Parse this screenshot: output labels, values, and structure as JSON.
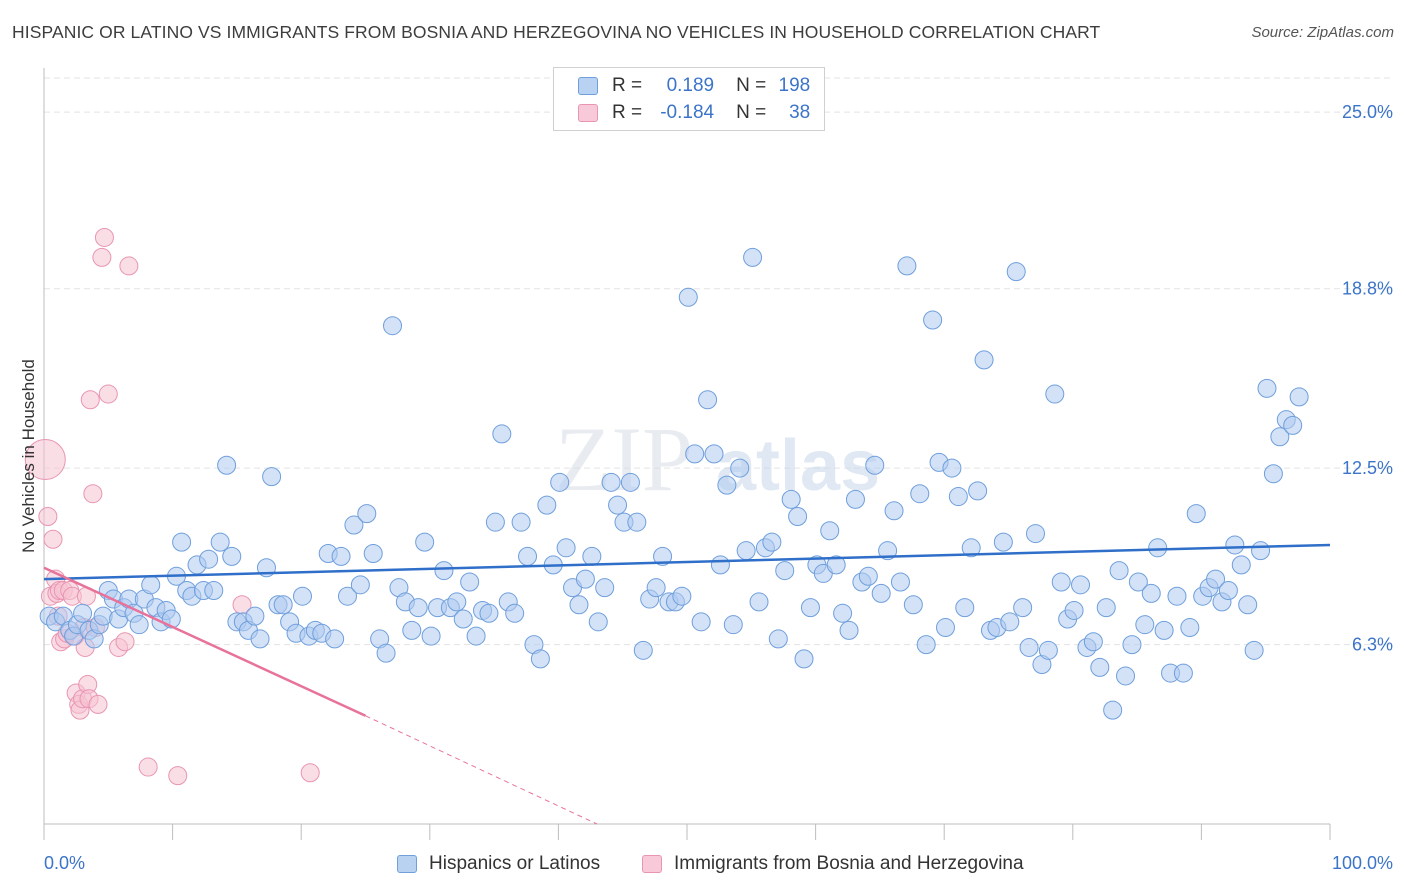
{
  "title": "HISPANIC OR LATINO VS IMMIGRANTS FROM BOSNIA AND HERZEGOVINA NO VEHICLES IN HOUSEHOLD CORRELATION CHART",
  "source": "Source: ZipAtlas.com",
  "watermark": {
    "part1": "ZIP",
    "part2": "atlas"
  },
  "legend": {
    "r_label": "R =",
    "n_label": "N =",
    "rows": [
      {
        "r": "0.189",
        "n": "198"
      },
      {
        "r": "-0.184",
        "n": "38"
      }
    ]
  },
  "colors": {
    "blue_fill": "#aecbf0",
    "blue_stroke": "#6f9fdc",
    "blue_line": "#2f6fc9",
    "pink_fill": "#f6c2d2",
    "pink_stroke": "#e995b2",
    "pink_line": "#e8729a",
    "axis_label": "#3b74c8",
    "grid": "#e3e3e3"
  },
  "chart_data": {
    "type": "scatter",
    "xlabel": "",
    "ylabel": "No Vehicles in Household",
    "xlim": [
      0,
      100
    ],
    "ylim": [
      0,
      26.2
    ],
    "x_tick_labels": [
      "0.0%",
      "100.0%"
    ],
    "y_ticks": [
      6.3,
      12.5,
      18.8,
      25.0
    ],
    "y_tick_labels": [
      "6.3%",
      "12.5%",
      "18.8%",
      "25.0%"
    ],
    "grid": "horizontal dashed",
    "series": [
      {
        "name": "Hispanics or Latinos",
        "trend": {
          "x": [
            0,
            100
          ],
          "y": [
            8.6,
            9.8
          ]
        },
        "points": [
          [
            0.4,
            7.3
          ],
          [
            0.9,
            7.1
          ],
          [
            1.5,
            7.3
          ],
          [
            2.0,
            6.8
          ],
          [
            2.3,
            6.6
          ],
          [
            2.6,
            7.0
          ],
          [
            3.0,
            7.4
          ],
          [
            3.5,
            6.8
          ],
          [
            3.9,
            6.5
          ],
          [
            4.3,
            7.0
          ],
          [
            4.6,
            7.3
          ],
          [
            5.0,
            8.2
          ],
          [
            5.4,
            7.9
          ],
          [
            5.8,
            7.2
          ],
          [
            6.2,
            7.6
          ],
          [
            6.6,
            7.9
          ],
          [
            7.0,
            7.4
          ],
          [
            7.4,
            7.0
          ],
          [
            7.8,
            7.9
          ],
          [
            8.3,
            8.4
          ],
          [
            8.7,
            7.6
          ],
          [
            9.1,
            7.1
          ],
          [
            9.5,
            7.5
          ],
          [
            9.9,
            7.2
          ],
          [
            10.3,
            8.7
          ],
          [
            10.7,
            9.9
          ],
          [
            11.1,
            8.2
          ],
          [
            11.5,
            8.0
          ],
          [
            11.9,
            9.1
          ],
          [
            12.4,
            8.2
          ],
          [
            12.8,
            9.3
          ],
          [
            13.2,
            8.2
          ],
          [
            13.7,
            9.9
          ],
          [
            14.2,
            12.6
          ],
          [
            14.6,
            9.4
          ],
          [
            15.0,
            7.1
          ],
          [
            15.5,
            7.1
          ],
          [
            15.9,
            6.8
          ],
          [
            16.4,
            7.3
          ],
          [
            16.8,
            6.5
          ],
          [
            17.3,
            9.0
          ],
          [
            17.7,
            12.2
          ],
          [
            18.2,
            7.7
          ],
          [
            18.6,
            7.7
          ],
          [
            19.1,
            7.1
          ],
          [
            19.6,
            6.7
          ],
          [
            20.1,
            8.0
          ],
          [
            20.6,
            6.6
          ],
          [
            21.1,
            6.8
          ],
          [
            21.6,
            6.7
          ],
          [
            22.1,
            9.5
          ],
          [
            22.6,
            6.5
          ],
          [
            23.1,
            9.4
          ],
          [
            23.6,
            8.0
          ],
          [
            24.1,
            10.5
          ],
          [
            24.6,
            8.4
          ],
          [
            25.1,
            10.9
          ],
          [
            25.6,
            9.5
          ],
          [
            26.1,
            6.5
          ],
          [
            26.6,
            6.0
          ],
          [
            27.1,
            17.5
          ],
          [
            27.6,
            8.3
          ],
          [
            28.1,
            7.8
          ],
          [
            28.6,
            6.8
          ],
          [
            29.1,
            7.6
          ],
          [
            29.6,
            9.9
          ],
          [
            30.1,
            6.6
          ],
          [
            30.6,
            7.6
          ],
          [
            31.1,
            8.9
          ],
          [
            31.6,
            7.6
          ],
          [
            32.1,
            7.8
          ],
          [
            32.6,
            7.2
          ],
          [
            33.1,
            8.5
          ],
          [
            33.6,
            6.6
          ],
          [
            34.1,
            7.5
          ],
          [
            34.6,
            7.4
          ],
          [
            35.1,
            10.6
          ],
          [
            35.6,
            13.7
          ],
          [
            36.1,
            7.8
          ],
          [
            36.6,
            7.4
          ],
          [
            37.1,
            10.6
          ],
          [
            37.6,
            9.4
          ],
          [
            38.1,
            6.3
          ],
          [
            38.6,
            5.8
          ],
          [
            39.1,
            11.2
          ],
          [
            39.6,
            9.1
          ],
          [
            40.1,
            12.0
          ],
          [
            40.6,
            9.7
          ],
          [
            41.1,
            8.3
          ],
          [
            41.6,
            7.7
          ],
          [
            42.1,
            8.6
          ],
          [
            42.6,
            9.4
          ],
          [
            43.1,
            7.1
          ],
          [
            43.6,
            8.3
          ],
          [
            44.1,
            12.0
          ],
          [
            44.6,
            11.2
          ],
          [
            45.1,
            10.6
          ],
          [
            45.6,
            12.0
          ],
          [
            46.1,
            10.6
          ],
          [
            46.6,
            6.1
          ],
          [
            47.1,
            7.9
          ],
          [
            47.6,
            8.3
          ],
          [
            48.1,
            9.4
          ],
          [
            48.6,
            7.8
          ],
          [
            49.1,
            7.8
          ],
          [
            49.6,
            8.0
          ],
          [
            50.1,
            18.5
          ],
          [
            50.6,
            13.0
          ],
          [
            51.1,
            7.1
          ],
          [
            51.6,
            14.9
          ],
          [
            52.1,
            13.0
          ],
          [
            52.6,
            9.1
          ],
          [
            53.1,
            11.9
          ],
          [
            53.6,
            7.0
          ],
          [
            54.1,
            12.5
          ],
          [
            54.6,
            9.6
          ],
          [
            55.1,
            19.9
          ],
          [
            55.6,
            7.8
          ],
          [
            56.1,
            9.7
          ],
          [
            56.6,
            9.9
          ],
          [
            57.1,
            6.5
          ],
          [
            57.6,
            8.9
          ],
          [
            58.1,
            11.4
          ],
          [
            58.6,
            10.8
          ],
          [
            59.1,
            5.8
          ],
          [
            59.6,
            7.6
          ],
          [
            60.1,
            9.1
          ],
          [
            60.6,
            8.8
          ],
          [
            61.1,
            10.3
          ],
          [
            61.6,
            9.1
          ],
          [
            62.1,
            7.4
          ],
          [
            62.6,
            6.8
          ],
          [
            63.1,
            11.4
          ],
          [
            63.6,
            8.5
          ],
          [
            64.1,
            8.7
          ],
          [
            64.6,
            12.6
          ],
          [
            65.1,
            8.1
          ],
          [
            65.6,
            9.6
          ],
          [
            66.1,
            11.0
          ],
          [
            66.6,
            8.5
          ],
          [
            67.1,
            19.6
          ],
          [
            67.6,
            7.7
          ],
          [
            68.1,
            11.6
          ],
          [
            68.6,
            6.3
          ],
          [
            69.1,
            17.7
          ],
          [
            69.6,
            12.7
          ],
          [
            70.1,
            6.9
          ],
          [
            70.6,
            12.5
          ],
          [
            71.1,
            11.5
          ],
          [
            71.6,
            7.6
          ],
          [
            72.1,
            9.7
          ],
          [
            72.6,
            11.7
          ],
          [
            73.1,
            16.3
          ],
          [
            73.6,
            6.8
          ],
          [
            74.1,
            6.9
          ],
          [
            74.6,
            9.9
          ],
          [
            75.1,
            7.1
          ],
          [
            75.6,
            19.4
          ],
          [
            76.1,
            7.6
          ],
          [
            76.6,
            6.2
          ],
          [
            77.1,
            10.2
          ],
          [
            77.6,
            5.6
          ],
          [
            78.1,
            6.1
          ],
          [
            78.6,
            15.1
          ],
          [
            79.1,
            8.5
          ],
          [
            79.6,
            7.2
          ],
          [
            80.1,
            7.5
          ],
          [
            80.6,
            8.4
          ],
          [
            81.1,
            6.2
          ],
          [
            81.6,
            6.4
          ],
          [
            82.1,
            5.5
          ],
          [
            82.6,
            7.6
          ],
          [
            83.1,
            4.0
          ],
          [
            83.6,
            8.9
          ],
          [
            84.1,
            5.2
          ],
          [
            84.6,
            6.3
          ],
          [
            85.1,
            8.5
          ],
          [
            85.6,
            7.0
          ],
          [
            86.1,
            8.1
          ],
          [
            86.6,
            9.7
          ],
          [
            87.1,
            6.8
          ],
          [
            87.6,
            5.3
          ],
          [
            88.1,
            8.0
          ],
          [
            88.6,
            5.3
          ],
          [
            89.1,
            6.9
          ],
          [
            89.6,
            10.9
          ],
          [
            90.1,
            8.0
          ],
          [
            90.6,
            8.3
          ],
          [
            91.1,
            8.6
          ],
          [
            91.6,
            7.8
          ],
          [
            92.1,
            8.2
          ],
          [
            92.6,
            9.8
          ],
          [
            93.1,
            9.1
          ],
          [
            93.6,
            7.7
          ],
          [
            94.1,
            6.1
          ],
          [
            94.6,
            9.6
          ],
          [
            95.1,
            15.3
          ],
          [
            95.6,
            12.3
          ],
          [
            96.1,
            13.6
          ],
          [
            96.6,
            14.2
          ],
          [
            97.1,
            14.0
          ],
          [
            97.6,
            15.0
          ]
        ]
      },
      {
        "name": "Immigrants from Bosnia and Herzegovina",
        "trend": {
          "x": [
            0,
            25.0
          ],
          "y": [
            9.0,
            3.8
          ],
          "dash_to": [
            43,
            0
          ]
        },
        "points": [
          [
            0.1,
            12.8
          ],
          [
            0.3,
            10.8
          ],
          [
            0.5,
            8.0
          ],
          [
            0.7,
            10.0
          ],
          [
            0.9,
            8.6
          ],
          [
            1.0,
            8.1
          ],
          [
            1.1,
            7.3
          ],
          [
            1.2,
            8.2
          ],
          [
            1.3,
            6.4
          ],
          [
            1.5,
            8.2
          ],
          [
            1.6,
            6.5
          ],
          [
            1.8,
            6.7
          ],
          [
            2.0,
            8.2
          ],
          [
            2.2,
            8.0
          ],
          [
            2.4,
            6.6
          ],
          [
            2.5,
            4.6
          ],
          [
            2.7,
            4.2
          ],
          [
            2.8,
            4.0
          ],
          [
            3.0,
            4.4
          ],
          [
            3.1,
            6.9
          ],
          [
            3.2,
            6.2
          ],
          [
            3.3,
            8.0
          ],
          [
            3.4,
            4.9
          ],
          [
            3.5,
            4.4
          ],
          [
            3.6,
            14.9
          ],
          [
            3.8,
            11.6
          ],
          [
            4.0,
            6.9
          ],
          [
            4.2,
            4.2
          ],
          [
            4.5,
            19.9
          ],
          [
            4.7,
            20.6
          ],
          [
            5.0,
            15.1
          ],
          [
            5.8,
            6.2
          ],
          [
            6.3,
            6.4
          ],
          [
            6.6,
            19.6
          ],
          [
            8.1,
            2.0
          ],
          [
            10.4,
            1.7
          ],
          [
            15.4,
            7.7
          ],
          [
            20.7,
            1.8
          ]
        ]
      }
    ]
  }
}
